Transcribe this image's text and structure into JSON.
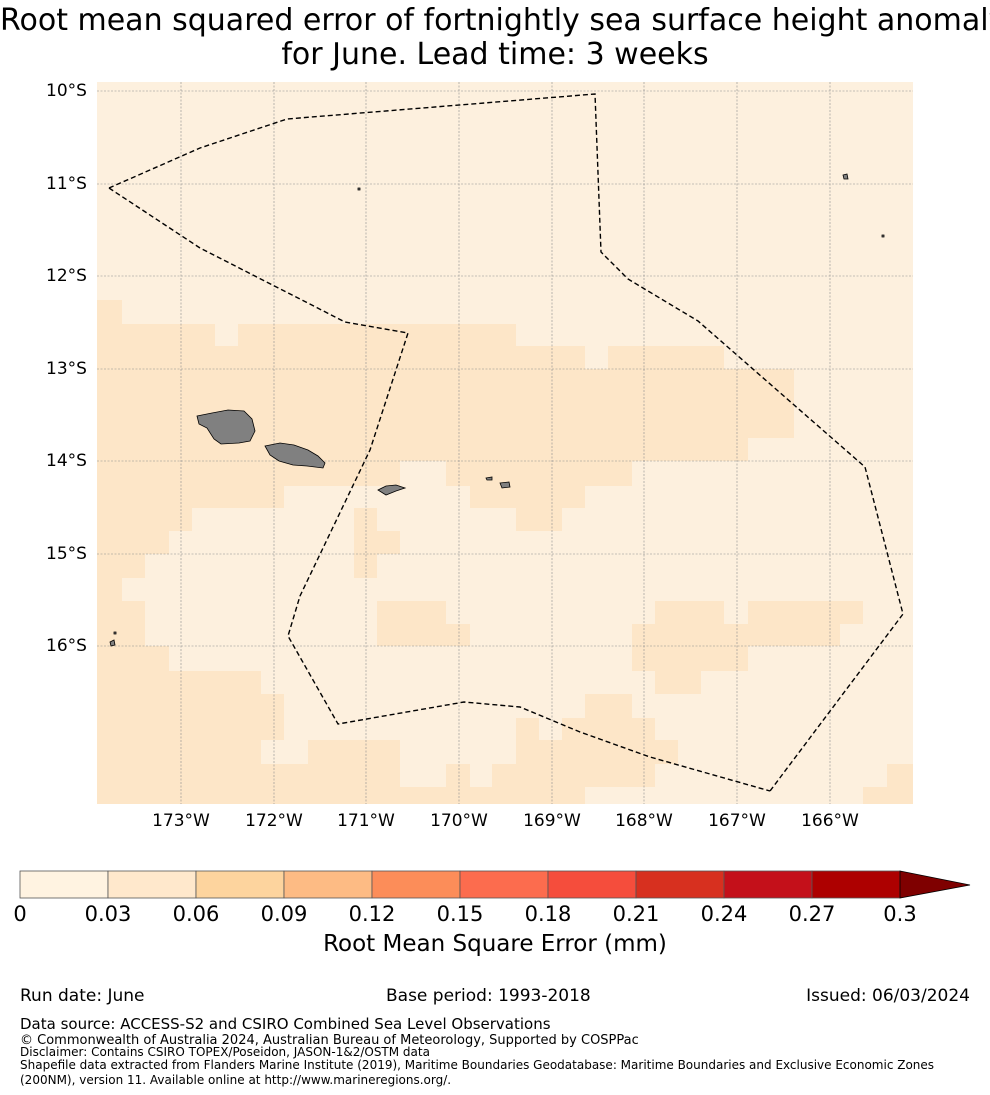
{
  "title": {
    "line1": "Root mean squared error of fortnightly sea surface height anomaly",
    "line2": "for June. Lead time: 3 weeks"
  },
  "map": {
    "lat_labels": [
      "10°S",
      "11°S",
      "12°S",
      "13°S",
      "14°S",
      "15°S",
      "16°S"
    ],
    "lon_labels": [
      "173°W",
      "172°W",
      "171°W",
      "170°W",
      "169°W",
      "168°W",
      "167°W",
      "166°W"
    ],
    "colors": {
      "background_cell": "#fdf0de",
      "elevated_cell": "#fde6c8",
      "land": "#808080",
      "eez_boundary": "#000000",
      "gridline": "#8c8c8c"
    }
  },
  "colorbar": {
    "label": "Root Mean Square Error (mm)",
    "ticks": [
      "0",
      "0.03",
      "0.06",
      "0.09",
      "0.12",
      "0.15",
      "0.18",
      "0.21",
      "0.24",
      "0.27",
      "0.3"
    ],
    "colors": [
      "#fff3e1",
      "#ffe8cc",
      "#fdd49e",
      "#fdbb84",
      "#fc8d59",
      "#fc6c4e",
      "#f54d3c",
      "#d7301f",
      "#c4101a",
      "#ad0000"
    ],
    "extend_color": "#7f0000"
  },
  "meta": {
    "run_date": "Run date: June",
    "base_period": "Base period: 1993-2018",
    "issued": "Issued: 06/03/2024"
  },
  "footer": {
    "data_source": "Data source: ACCESS-S2 and CSIRO Combined Sea Level Observations",
    "copyright": "© Commonwealth of Australia 2024, Australian Bureau of Meteorology, Supported by COSPPac",
    "disclaimer": "Disclaimer: Contains CSIRO TOPEX/Poseidon, JASON-1&2/OSTM data",
    "shapefile_line1": "Shapefile data extracted from Flanders Marine Institute (2019), Maritime Boundaries Geodatabase: Maritime Boundaries and Exclusive Economic Zones",
    "shapefile_line2": "(200NM), version 11. Available online at http://www.marineregions.org/."
  }
}
